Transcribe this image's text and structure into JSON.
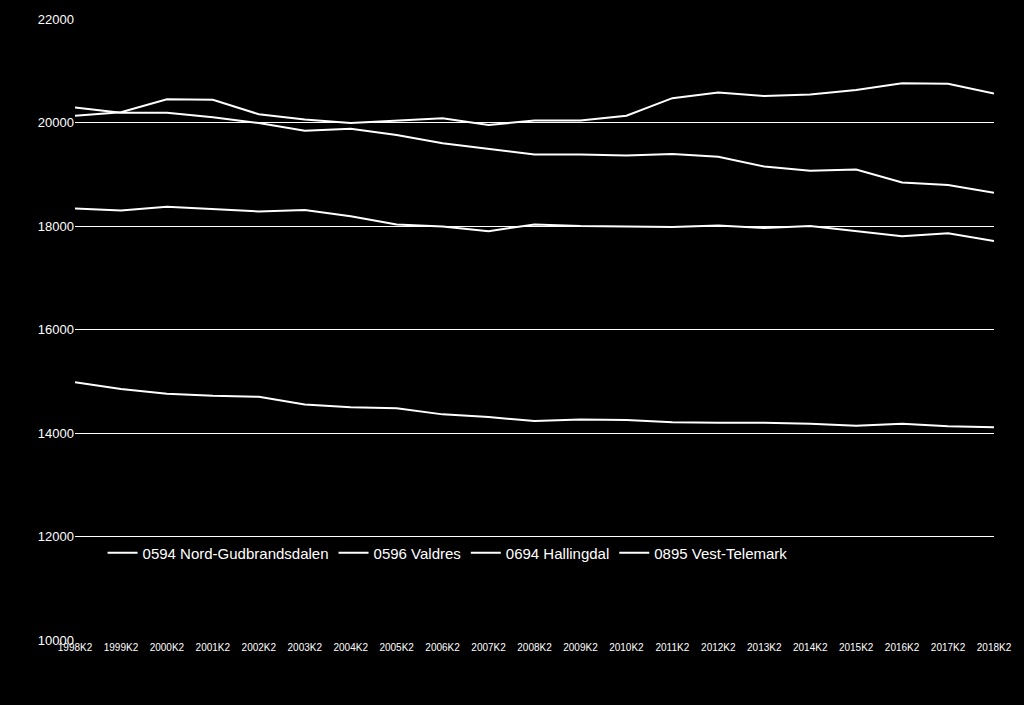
{
  "chart_data": {
    "type": "line",
    "categories": [
      "1998K2",
      "1999K2",
      "2000K2",
      "2001K2",
      "2002K2",
      "2003K2",
      "2004K2",
      "2005K2",
      "2006K2",
      "2007K2",
      "2008K2",
      "2009K2",
      "2010K2",
      "2011K2",
      "2012K2",
      "2013K2",
      "2014K2",
      "2015K2",
      "2016K2",
      "2017K2",
      "2018K2"
    ],
    "series": [
      {
        "name": "0594 Nord-Gudbrandsdalen",
        "color": "#ffffff",
        "line_style": "solid",
        "values": [
          20290,
          20190,
          20190,
          20100,
          19990,
          19840,
          19880,
          19760,
          19600,
          19490,
          19380,
          19380,
          19360,
          19390,
          19340,
          19150,
          19070,
          19090,
          18840,
          18790,
          18640
        ]
      },
      {
        "name": "0596 Valdres",
        "color": "#ffffff",
        "line_style": "solid",
        "values": [
          18340,
          18300,
          18370,
          18330,
          18280,
          18310,
          18190,
          18030,
          17990,
          17900,
          18030,
          18000,
          17990,
          17980,
          18010,
          17960,
          18000,
          17900,
          17800,
          17860,
          17710
        ]
      },
      {
        "name": "0694 Hallingdal",
        "color": "#ffffff",
        "line_style": "solid",
        "values": [
          20130,
          20200,
          20450,
          20440,
          20160,
          20060,
          19990,
          20040,
          20080,
          19950,
          20040,
          20040,
          20130,
          20470,
          20580,
          20510,
          20540,
          20630,
          20760,
          20750,
          20560
        ]
      },
      {
        "name": "0895 Vest-Telemark",
        "color": "#ffffff",
        "line_style": "solid",
        "values": [
          14980,
          14850,
          14760,
          14720,
          14700,
          14550,
          14500,
          14480,
          14360,
          14310,
          14230,
          14260,
          14250,
          14210,
          14200,
          14200,
          14180,
          14140,
          14180,
          14130,
          14110
        ]
      }
    ],
    "ylim": [
      10000,
      22000
    ],
    "yticks": [
      10000,
      12000,
      14000,
      16000,
      18000,
      20000,
      22000
    ],
    "grid": true,
    "legend": "bottom"
  }
}
